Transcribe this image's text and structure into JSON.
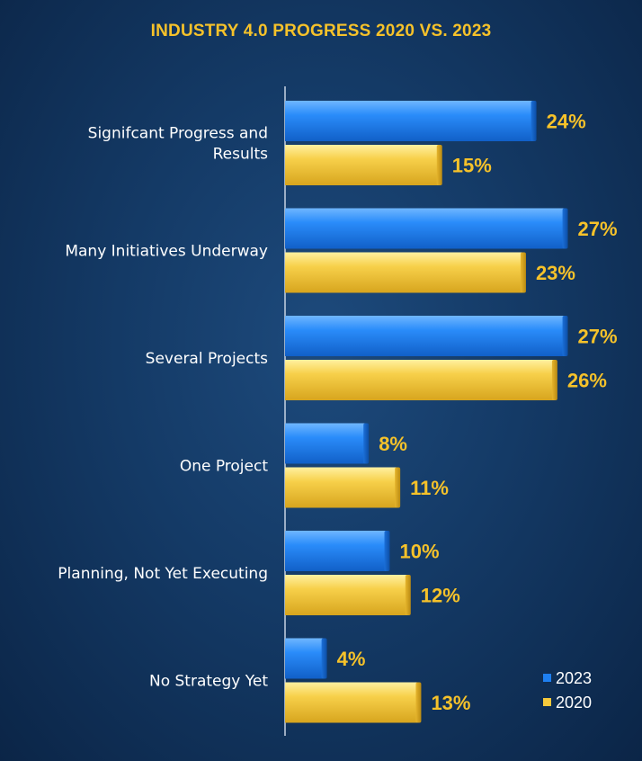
{
  "title": "INDUSTRY 4.0 PROGRESS 2020 VS. 2023",
  "colors": {
    "s2023": "#1e7ff0",
    "s2020": "#f5c93c",
    "value_label": "#f6c22a"
  },
  "chart_data": {
    "type": "bar",
    "orientation": "horizontal",
    "title": "INDUSTRY 4.0 PROGRESS 2020 VS. 2023",
    "categories": [
      [
        "Signifcant Progress and",
        "Results"
      ],
      [
        "Many Initiatives Underway"
      ],
      [
        "Several Projects"
      ],
      [
        "One Project"
      ],
      [
        "Planning, Not Yet Executing"
      ],
      [
        "No Strategy Yet"
      ]
    ],
    "series": [
      {
        "name": "2023",
        "values": [
          24,
          27,
          27,
          8,
          10,
          4
        ],
        "labels": [
          "24%",
          "27%",
          "27%",
          "8%",
          "10%",
          "4%"
        ]
      },
      {
        "name": "2020",
        "values": [
          15,
          23,
          26,
          11,
          12,
          13
        ],
        "labels": [
          "15%",
          "23%",
          "26%",
          "11%",
          "12%",
          "13%"
        ]
      }
    ],
    "xlim": [
      0,
      31
    ],
    "grid": false,
    "legend_position": "bottom-right"
  }
}
